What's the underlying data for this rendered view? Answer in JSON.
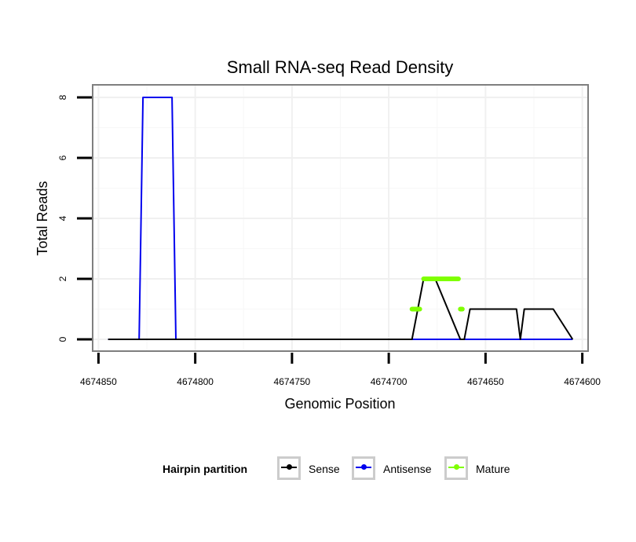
{
  "chart_data": {
    "type": "line",
    "title": "Small RNA-seq Read Density",
    "xlabel": "Genomic Position",
    "ylabel": "Total Reads",
    "x_reversed": true,
    "xlim": [
      4674853,
      4674597
    ],
    "ylim": [
      0,
      8.3
    ],
    "x_ticks": [
      4674850,
      4674800,
      4674750,
      4674700,
      4674650,
      4674600
    ],
    "x_tick_labels": [
      "4674850",
      "4674800",
      "4674750",
      "4674700",
      "4674650",
      "4674600"
    ],
    "y_ticks": [
      0,
      2,
      4,
      6,
      8
    ],
    "y_tick_labels": [
      "0",
      "2",
      "4",
      "6",
      "8"
    ],
    "legend": {
      "title": "Hairpin partition",
      "position": "bottom"
    },
    "series": [
      {
        "name": "Sense",
        "color": "#000000",
        "x": [
          4674845,
          4674688,
          4674682,
          4674676,
          4674663,
          4674661,
          4674658,
          4674634,
          4674632,
          4674630,
          4674615,
          4674605
        ],
        "y": [
          0,
          0,
          2,
          2,
          0,
          0,
          1,
          1,
          0,
          1,
          1,
          0
        ]
      },
      {
        "name": "Antisense",
        "color": "#0000ee",
        "x": [
          4674829,
          4674827,
          4674822,
          4674812,
          4674810,
          4674845,
          4674688,
          4674663,
          4674661,
          4674658,
          4674634,
          4674632,
          4674630,
          4674615,
          4674605
        ],
        "y": [
          0,
          8,
          8,
          8,
          0,
          0,
          0,
          0,
          0,
          0,
          0,
          0,
          0,
          0,
          0
        ]
      },
      {
        "name": "Mature",
        "color": "#7fff00",
        "segments": [
          {
            "x": [
              4674688,
              4674684
            ],
            "y": [
              1,
              1
            ]
          },
          {
            "x": [
              4674682,
              4674664
            ],
            "y": [
              2,
              2
            ]
          },
          {
            "x": [
              4674663,
              4674662
            ],
            "y": [
              1,
              1
            ]
          }
        ]
      }
    ]
  }
}
